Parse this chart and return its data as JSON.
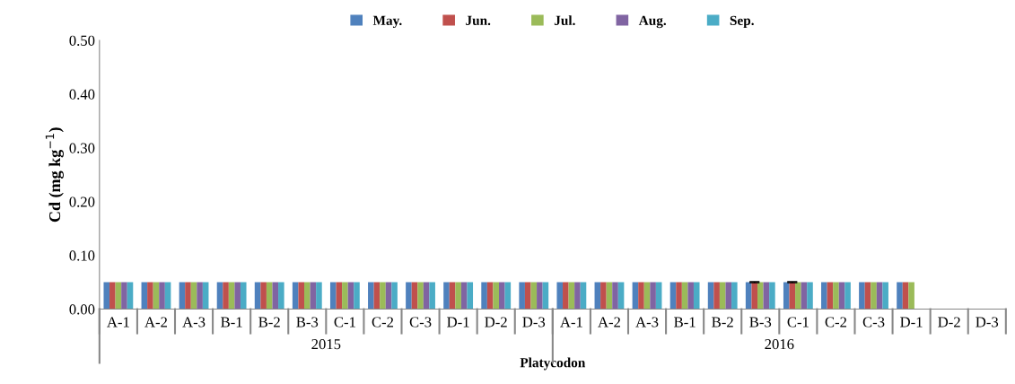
{
  "chart_data": {
    "type": "bar",
    "xlabel": "Platycodon",
    "ylabel": "Cd (mg kg$^{−1}$)",
    "categories": [
      "A-1",
      "A-2",
      "A-3",
      "B-1",
      "B-2",
      "B-3",
      "C-1",
      "C-2",
      "C-3",
      "D-1",
      "D-2",
      "D-3",
      "A-1",
      "A-2",
      "A-3",
      "B-1",
      "B-2",
      "B-3",
      "C-1",
      "C-2",
      "C-3",
      "D-1",
      "D-2",
      "D-3"
    ],
    "annotations": [
      "2015",
      "2016"
    ],
    "ylim": [
      0,
      0.5
    ],
    "yticks": [
      {
        "value": 0,
        "label": "0.00"
      },
      {
        "value": 0.1,
        "label": "0.10"
      },
      {
        "value": 0.2,
        "label": "0.20"
      },
      {
        "value": 0.3,
        "label": "0.30"
      },
      {
        "value": 0.4,
        "label": "0.40"
      },
      {
        "value": 0.5,
        "label": "0.50"
      }
    ],
    "grid": false,
    "legend": "top",
    "series": [
      {
        "name": "May.",
        "color": "#4f81bd",
        "values": [
          0.05,
          0.05,
          0.05,
          0.05,
          0.05,
          0.05,
          0.05,
          0.05,
          0.05,
          0.05,
          0.05,
          0.05,
          0.05,
          0.05,
          0.05,
          0.05,
          0.05,
          0.05,
          0.05,
          0.05,
          0.05,
          0.05,
          null,
          null
        ]
      },
      {
        "name": "Jun.",
        "color": "#c0504d",
        "values": [
          0.05,
          0.05,
          0.05,
          0.05,
          0.05,
          0.05,
          0.05,
          0.05,
          0.05,
          0.05,
          0.05,
          0.05,
          0.05,
          0.05,
          0.05,
          0.05,
          0.05,
          0.05,
          0.05,
          0.05,
          0.05,
          0.05,
          null,
          null
        ],
        "errors": [
          null,
          null,
          null,
          null,
          null,
          null,
          null,
          null,
          null,
          null,
          null,
          null,
          null,
          null,
          null,
          null,
          null,
          0.001,
          0.001,
          null,
          null,
          null,
          null,
          null
        ]
      },
      {
        "name": "Jul.",
        "color": "#9bbb59",
        "values": [
          0.05,
          0.05,
          0.05,
          0.05,
          0.05,
          0.05,
          0.05,
          0.05,
          0.05,
          0.05,
          0.05,
          0.05,
          0.05,
          0.05,
          0.05,
          0.05,
          0.05,
          0.05,
          0.05,
          0.05,
          0.05,
          0.05,
          null,
          null
        ]
      },
      {
        "name": "Aug.",
        "color": "#8064a2",
        "values": [
          0.05,
          0.05,
          0.05,
          0.05,
          0.05,
          0.05,
          0.05,
          0.05,
          0.05,
          0.05,
          0.05,
          0.05,
          0.05,
          0.05,
          0.05,
          0.05,
          0.05,
          0.05,
          0.05,
          0.05,
          0.05,
          null,
          null,
          null
        ]
      },
      {
        "name": "Sep.",
        "color": "#4bacc6",
        "values": [
          0.05,
          0.05,
          0.05,
          0.05,
          0.05,
          0.05,
          0.05,
          0.05,
          0.05,
          0.05,
          0.05,
          0.05,
          0.05,
          0.05,
          0.05,
          0.05,
          0.05,
          0.05,
          0.05,
          0.05,
          0.05,
          null,
          null,
          null
        ]
      }
    ]
  }
}
